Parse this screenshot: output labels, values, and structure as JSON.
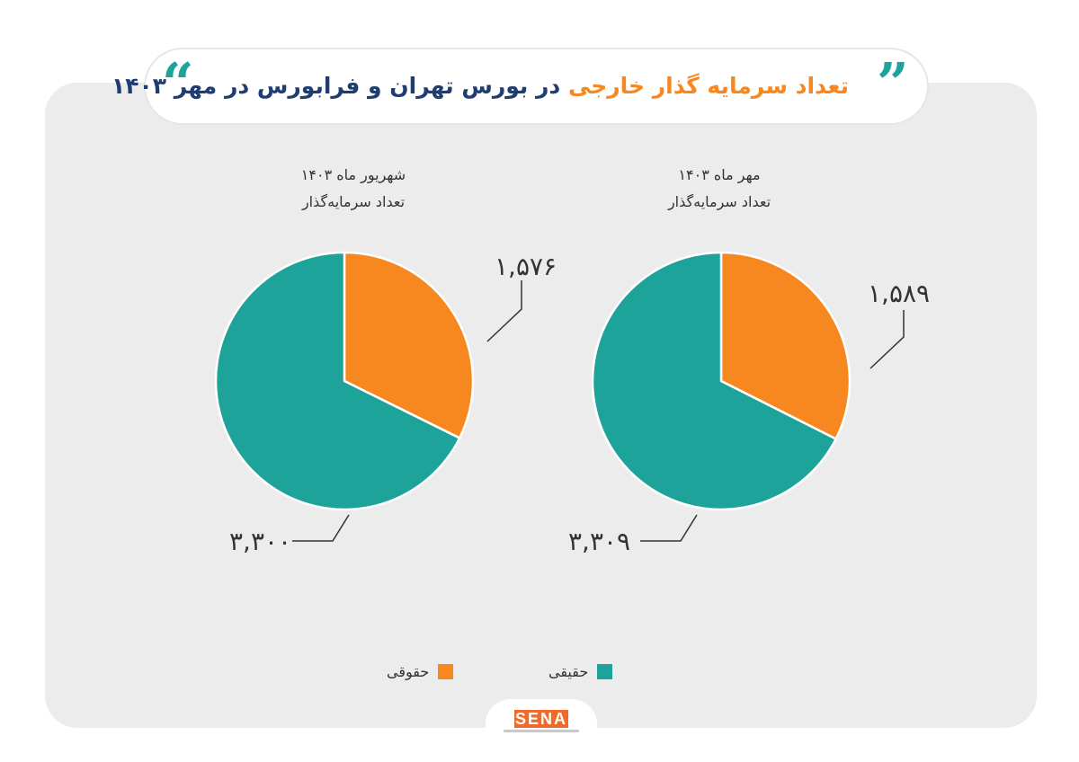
{
  "title": {
    "accent": "تعداد سرمایه گذار خارجی",
    "main": "در بورس تهران و فرابورس در مهر ۱۴۰۳"
  },
  "colors": {
    "haghighi": "#1ea39b",
    "hoghooghi": "#f7881f",
    "title": "#1f3d73",
    "accent": "#f7881f"
  },
  "icons": {
    "quotes": "quote-marks-icon"
  },
  "chart_data": [
    {
      "type": "pie",
      "subtitle_line1": "شهریور ماه ۱۴۰۳",
      "subtitle_line2": "تعداد سرمایه‌گذار",
      "slices": [
        {
          "name": "حقوقی",
          "value": 1576,
          "label": "۱,۵۷۶",
          "color": "#f7881f"
        },
        {
          "name": "حقیقی",
          "value": 3300,
          "label": "۳,۳۰۰",
          "color": "#1ea39b"
        }
      ]
    },
    {
      "type": "pie",
      "subtitle_line1": "مهر ماه ۱۴۰۳",
      "subtitle_line2": "تعداد سرمایه‌گذار",
      "slices": [
        {
          "name": "حقوقی",
          "value": 1589,
          "label": "۱,۵۸۹",
          "color": "#f7881f"
        },
        {
          "name": "حقیقی",
          "value": 3309,
          "label": "۳,۳۰۹",
          "color": "#1ea39b"
        }
      ]
    }
  ],
  "legend": [
    {
      "label": "حقیقی",
      "color": "#1ea39b"
    },
    {
      "label": "حقوقی",
      "color": "#f7881f"
    }
  ],
  "logo": {
    "text": "SENA"
  }
}
